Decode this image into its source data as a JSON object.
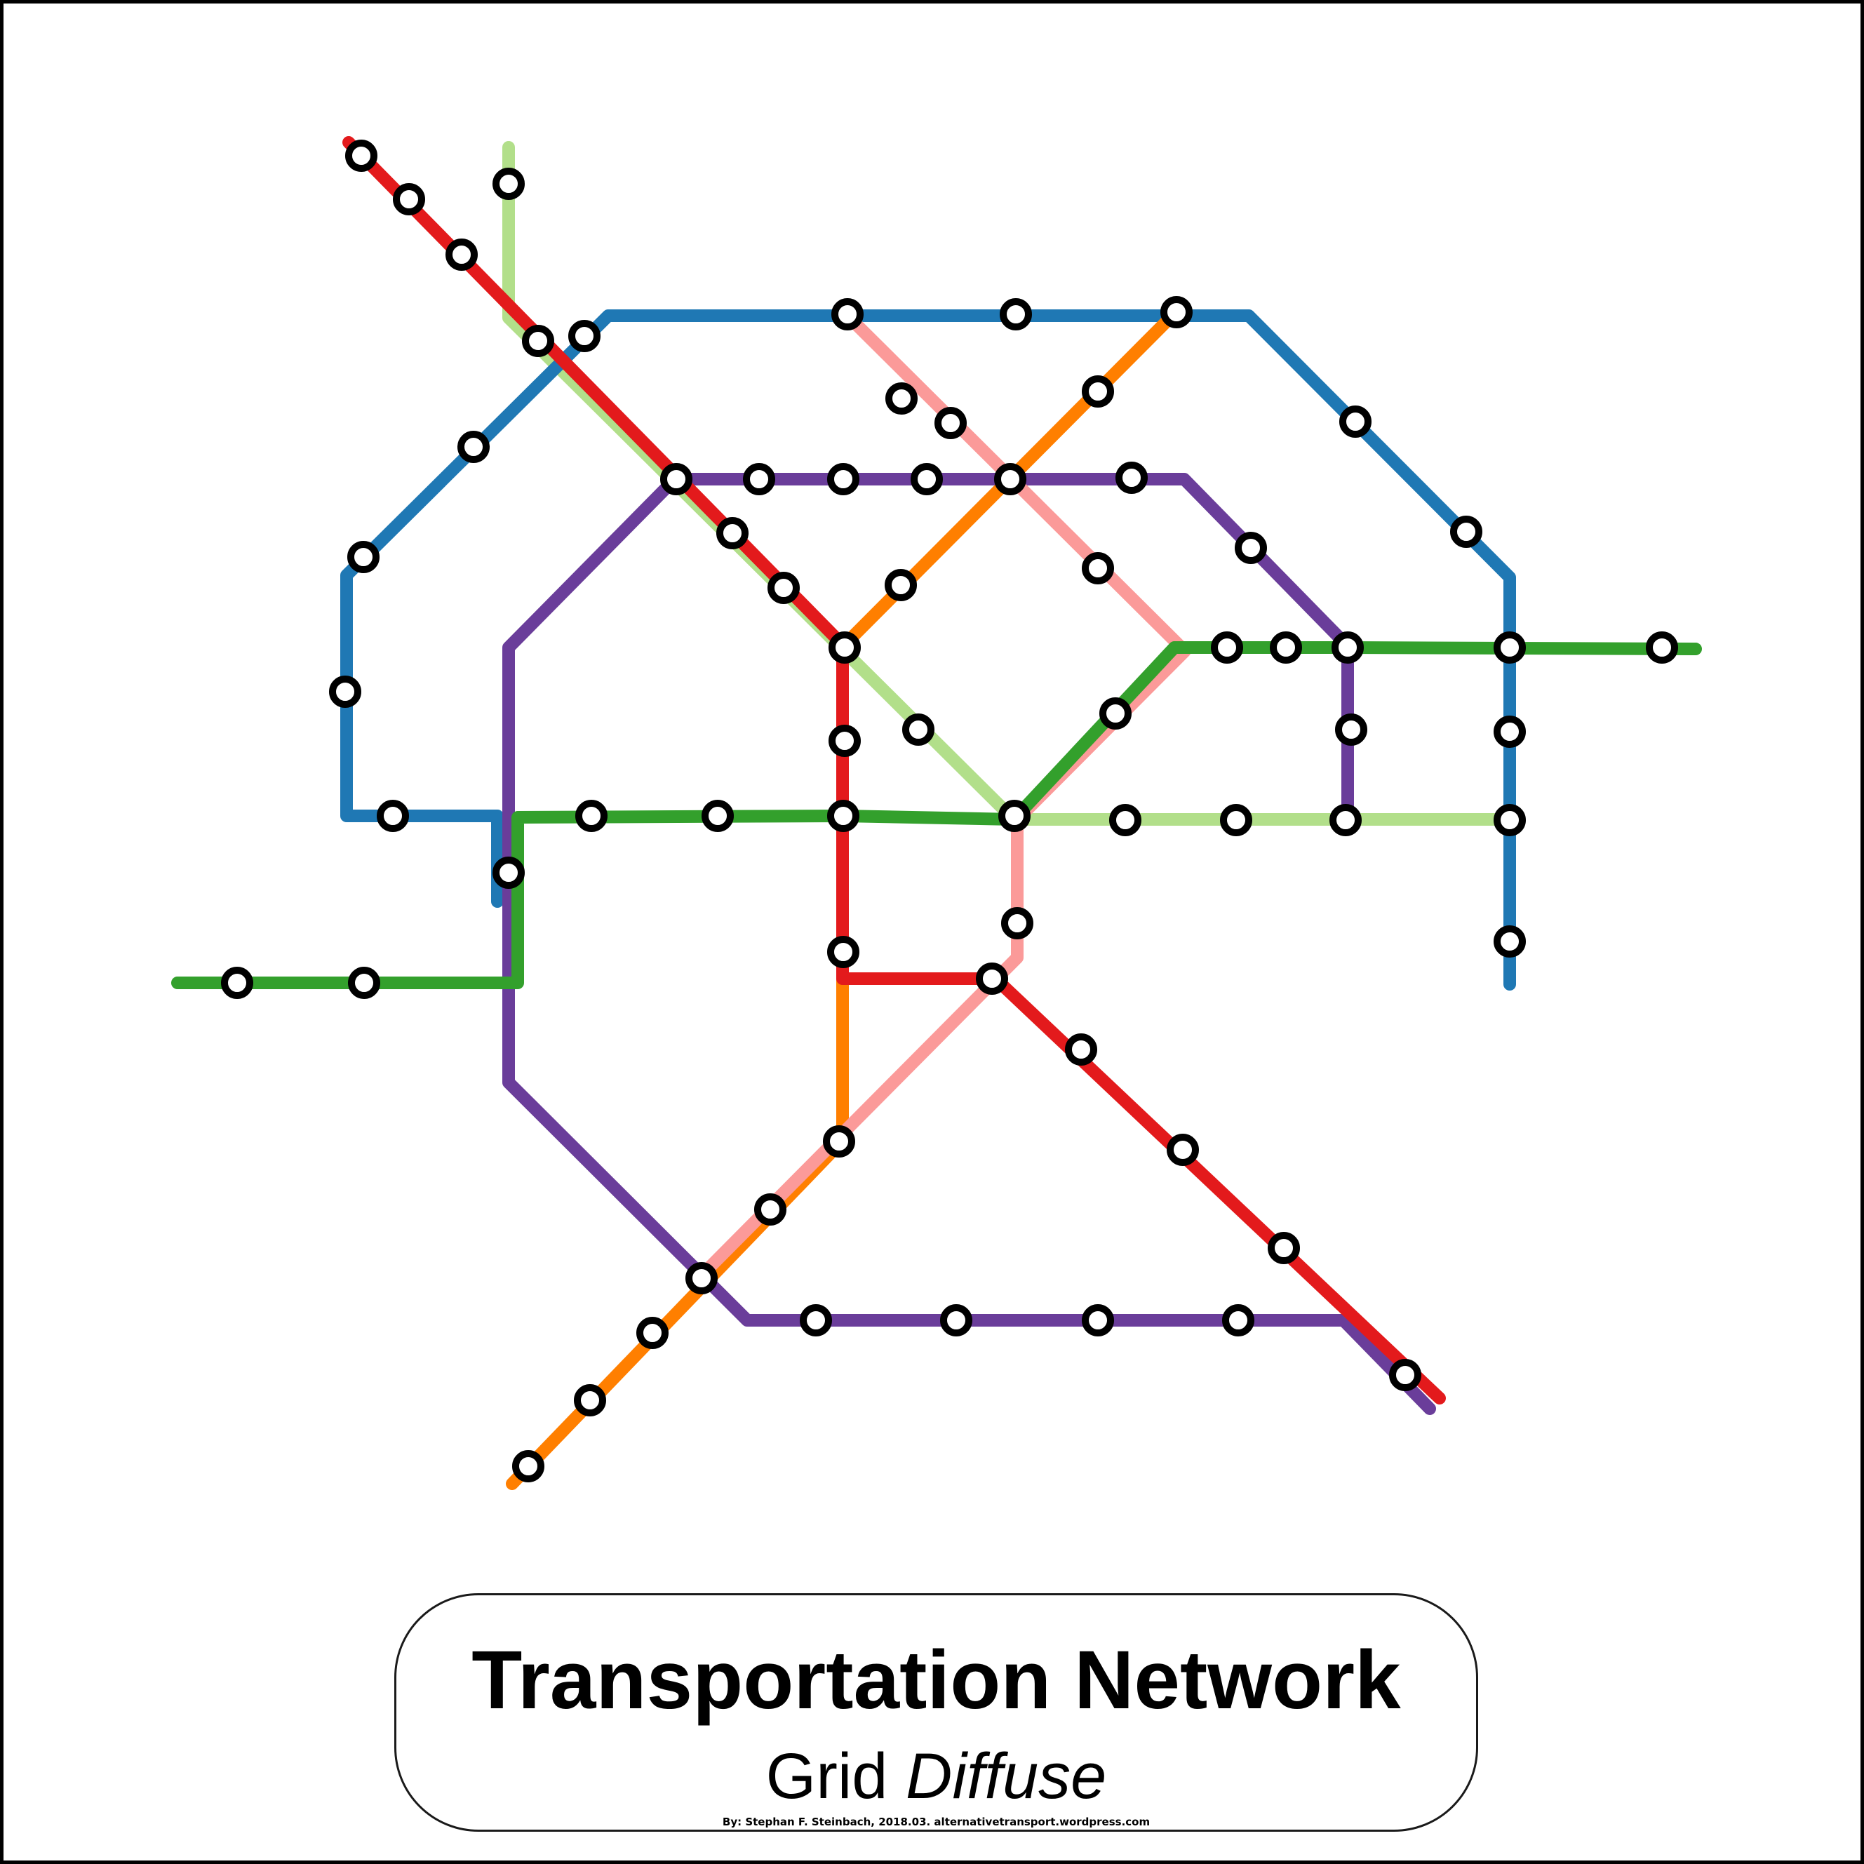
{
  "title": "Transportation Network",
  "subtitle_main": "Grid",
  "subtitle_emphasis": "Diffuse",
  "credit": "By: Stephan F. Steinbach, 2018.03. alternativetransport.wordpress.com",
  "line_colors": {
    "red": "#e31a1c",
    "light_green": "#b2df8a",
    "blue": "#1f78b4",
    "purple": "#6a3d9a",
    "orange": "#ff7f00",
    "pink": "#fb9a99",
    "green": "#33a02c"
  },
  "station_style": {
    "fill": "#ffffff",
    "stroke": "#000000"
  }
}
